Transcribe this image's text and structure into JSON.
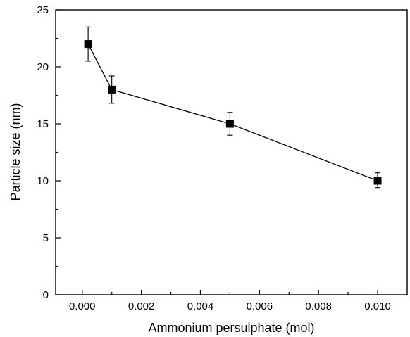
{
  "chart_data": {
    "type": "scatter",
    "xlabel": "Ammonium persulphate (mol)",
    "ylabel": "Particle size (nm)",
    "xlim": [
      -0.0009,
      0.011
    ],
    "ylim": [
      0,
      25
    ],
    "xticks": [
      0.0,
      0.002,
      0.004,
      0.006,
      0.008,
      0.01
    ],
    "xtick_labels": [
      "0.000",
      "0.002",
      "0.004",
      "0.006",
      "0.008",
      "0.010"
    ],
    "yticks": [
      0,
      5,
      10,
      15,
      20,
      25
    ],
    "ytick_labels": [
      "0",
      "5",
      "10",
      "15",
      "20",
      "25"
    ],
    "grid": false,
    "series": [
      {
        "x": [
          0.0002,
          0.001,
          0.005,
          0.01
        ],
        "y": [
          22,
          18,
          15,
          10
        ],
        "err_low": [
          20.5,
          16.8,
          14.0,
          9.4
        ],
        "err_high": [
          23.5,
          19.2,
          16.0,
          10.7
        ],
        "marker": "filled-square",
        "color": "#000000",
        "connected": true
      }
    ]
  }
}
